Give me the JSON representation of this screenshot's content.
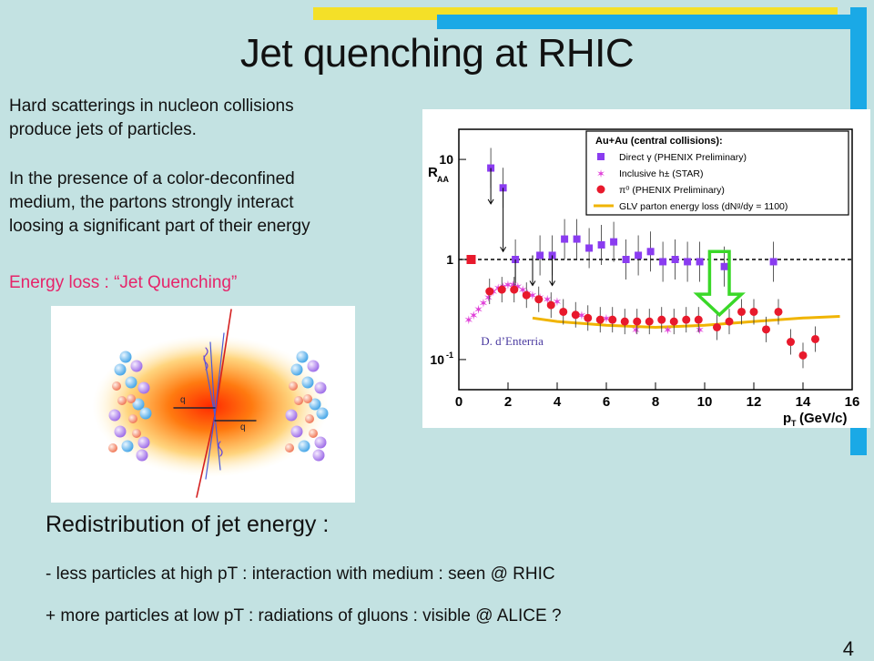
{
  "slide": {
    "title": "Jet quenching at RHIC",
    "intro_line1": "Hard scatterings in nucleon collisions",
    "intro_line2": "produce jets of particles.",
    "body_line1": "In the presence of a color-deconfined",
    "body_line2": "medium, the partons strongly interact",
    "body_line3": "loosing a significant part of their energy",
    "highlight": "Energy loss : “Jet Quenching”",
    "redistribution_heading": "Redistribution of jet energy :",
    "bullet1": "- less particles at high pT : interaction with medium : seen @ RHIC",
    "bullet2": "+ more particles at low pT : radiations of gluons : visible @ ALICE ?",
    "page_number": "4",
    "colors": {
      "background": "#c3e2e2",
      "accent_yellow": "#f4e028",
      "accent_blue": "#1aa9e6",
      "highlight_pink": "#e6246a"
    }
  },
  "illustration": {
    "quark_label_1": "q",
    "quark_label_2": "q"
  },
  "chart_data": {
    "type": "scatter",
    "ylabel": "R",
    "ylabel_sub": "AA",
    "xlabel": "p",
    "xlabel_sub": "T",
    "xlabel_unit": "(GeV/c)",
    "xlim": [
      0,
      16
    ],
    "ylim": [
      0.05,
      20
    ],
    "yscale": "log",
    "x_ticks": [
      0,
      2,
      4,
      6,
      8,
      10,
      12,
      14,
      16
    ],
    "y_tick_labels": [
      "10",
      "1",
      "10"
    ],
    "y_tick_sup": "-1",
    "reference_line": 1,
    "legend_title": "Au+Au (central collisions):",
    "legend_position": "top-right",
    "credit": "D. d’Enterria",
    "series": [
      {
        "name": "Direct γ (PHENIX Preliminary)",
        "color": "#8a3cf0",
        "marker": "square",
        "points": [
          [
            1.3,
            8.2
          ],
          [
            1.8,
            5.2
          ],
          [
            2.3,
            1.0
          ],
          [
            3.3,
            1.1
          ],
          [
            3.8,
            1.1
          ],
          [
            4.3,
            1.6
          ],
          [
            4.8,
            1.6
          ],
          [
            5.3,
            1.3
          ],
          [
            5.8,
            1.4
          ],
          [
            6.3,
            1.5
          ],
          [
            6.8,
            1.0
          ],
          [
            7.3,
            1.1
          ],
          [
            7.8,
            1.2
          ],
          [
            8.3,
            0.95
          ],
          [
            8.8,
            1.0
          ],
          [
            9.3,
            0.95
          ],
          [
            9.8,
            0.95
          ],
          [
            10.8,
            0.85
          ],
          [
            12.8,
            0.95
          ]
        ]
      },
      {
        "name": "Inclusive h± (STAR)",
        "color": "#e040d8",
        "marker": "star",
        "points": [
          [
            0.4,
            0.25
          ],
          [
            0.6,
            0.28
          ],
          [
            0.8,
            0.32
          ],
          [
            1.0,
            0.37
          ],
          [
            1.2,
            0.42
          ],
          [
            1.4,
            0.48
          ],
          [
            1.6,
            0.52
          ],
          [
            1.8,
            0.54
          ],
          [
            2.0,
            0.56
          ],
          [
            2.2,
            0.56
          ],
          [
            2.4,
            0.54
          ],
          [
            2.6,
            0.5
          ],
          [
            2.8,
            0.46
          ],
          [
            3.0,
            0.44
          ],
          [
            3.3,
            0.42
          ],
          [
            3.6,
            0.4
          ],
          [
            4.0,
            0.38
          ],
          [
            5.0,
            0.28
          ],
          [
            6.0,
            0.26
          ],
          [
            7.2,
            0.2
          ],
          [
            8.5,
            0.2
          ],
          [
            9.8,
            0.2
          ]
        ]
      },
      {
        "name": "π⁰ (PHENIX Preliminary)",
        "color": "#e8192c",
        "marker": "circle",
        "points": [
          [
            1.25,
            0.48
          ],
          [
            1.75,
            0.5
          ],
          [
            2.25,
            0.5
          ],
          [
            2.75,
            0.44
          ],
          [
            3.25,
            0.4
          ],
          [
            3.75,
            0.35
          ],
          [
            4.25,
            0.3
          ],
          [
            4.75,
            0.28
          ],
          [
            5.25,
            0.26
          ],
          [
            5.75,
            0.25
          ],
          [
            6.25,
            0.25
          ],
          [
            6.75,
            0.24
          ],
          [
            7.25,
            0.24
          ],
          [
            7.75,
            0.24
          ],
          [
            8.25,
            0.25
          ],
          [
            8.75,
            0.24
          ],
          [
            9.25,
            0.25
          ],
          [
            9.75,
            0.25
          ],
          [
            10.5,
            0.21
          ],
          [
            11.0,
            0.24
          ],
          [
            11.5,
            0.3
          ],
          [
            12.0,
            0.3
          ],
          [
            12.5,
            0.2
          ],
          [
            13.0,
            0.3
          ],
          [
            13.5,
            0.15
          ],
          [
            14.0,
            0.11
          ],
          [
            14.5,
            0.16
          ]
        ]
      },
      {
        "name": "GLV parton energy loss (dNᵍ/dy = 1100)",
        "color": "#f0b400",
        "marker": "line",
        "points": [
          [
            3,
            0.26
          ],
          [
            4,
            0.24
          ],
          [
            6,
            0.22
          ],
          [
            8,
            0.21
          ],
          [
            10,
            0.22
          ],
          [
            12,
            0.24
          ],
          [
            14,
            0.26
          ],
          [
            15.5,
            0.27
          ]
        ]
      }
    ]
  }
}
